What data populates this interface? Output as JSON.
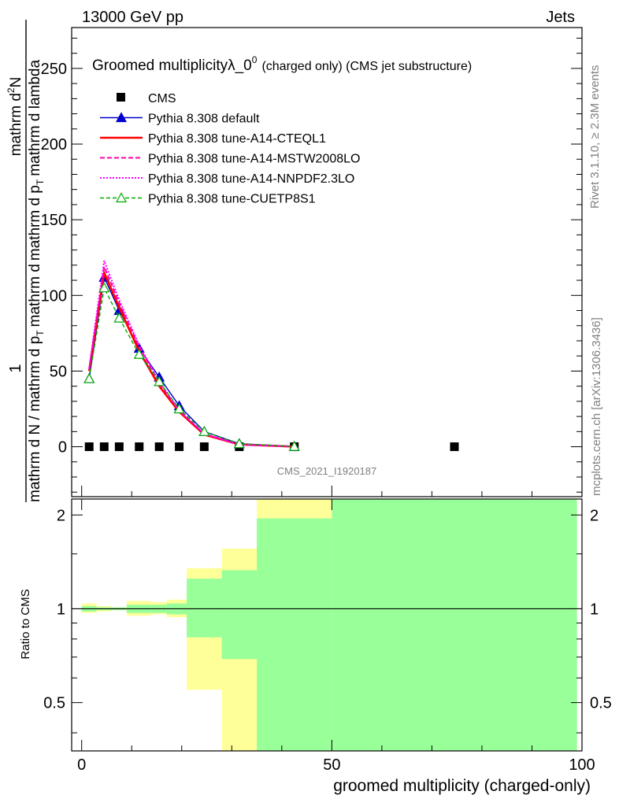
{
  "header": {
    "left": "13000 GeV pp",
    "right": "Jets"
  },
  "side_labels": {
    "rivet": "Rivet 3.1.10, ≥ 2.3M events",
    "mcplots": "mcplots.cern.ch [arXiv:1306.3436]"
  },
  "watermark": "CMS_2021_I1920187",
  "chart_data": [
    {
      "type": "line",
      "title": "Groomed multiplicityλ_0",
      "title_sup": "0",
      "title_suffix": "(charged only) (CMS jet substructure)",
      "ylabel_num_1": "1",
      "ylabel_den_1": "mathrm d N / mathrm d p",
      "ylabel_sub": "T",
      "ylabel_num_2": "mathrm d",
      "ylabel_sup": "2",
      "ylabel_num_3": "N",
      "ylabel_den_2": "mathrm d p",
      "ylabel_den_3": "mathrm d lambda",
      "xlim": [
        -2,
        100
      ],
      "ylim": [
        -33,
        277
      ],
      "yticks": [
        0,
        50,
        100,
        150,
        200,
        250
      ],
      "ytick_labels": [
        "0",
        "50",
        "100",
        "150",
        "200",
        "250"
      ],
      "legend_placement": "top-left",
      "series": [
        {
          "name": "CMS",
          "color": "#000000",
          "style": "marker-square",
          "x": [
            1.5,
            4.5,
            7.5,
            11.5,
            15.5,
            19.5,
            24.5,
            31.5,
            42.5,
            74.5
          ],
          "y": [
            0,
            0,
            0,
            0,
            0,
            0,
            0,
            0,
            0,
            0
          ]
        },
        {
          "name": "Pythia 8.308 default",
          "color": "#0000cc",
          "style": "solid-triangle",
          "x": [
            1.5,
            4.5,
            7.5,
            11.5,
            15.5,
            19.5,
            24.5,
            31.5,
            42.5
          ],
          "y": [
            45,
            112,
            90,
            65,
            46,
            27,
            10,
            2,
            0.2
          ]
        },
        {
          "name": "Pythia 8.308 tune-A14-CTEQL1",
          "color": "#ff0000",
          "style": "solid-thick",
          "x": [
            1.5,
            4.5,
            7.5,
            11.5,
            15.5,
            19.5,
            24.5,
            31.5,
            42.5
          ],
          "y": [
            50,
            115,
            92,
            63,
            40,
            23,
            8,
            1.5,
            0.1
          ]
        },
        {
          "name": "Pythia 8.308 tune-A14-MSTW2008LO",
          "color": "#ff00aa",
          "style": "dashed",
          "x": [
            1.5,
            4.5,
            7.5,
            11.5,
            15.5,
            19.5,
            24.5,
            31.5,
            42.5
          ],
          "y": [
            51,
            119,
            95,
            66,
            42,
            24,
            8.5,
            1.5,
            0.1
          ]
        },
        {
          "name": "Pythia 8.308 tune-A14-NNPDF2.3LO",
          "color": "#ff00ff",
          "style": "dotted",
          "x": [
            1.5,
            4.5,
            7.5,
            11.5,
            15.5,
            19.5,
            24.5,
            31.5,
            42.5
          ],
          "y": [
            52,
            123,
            97,
            67,
            43,
            24,
            8.5,
            1.5,
            0.1
          ]
        },
        {
          "name": "Pythia 8.308 tune-CUETP8S1",
          "color": "#00aa00",
          "style": "dashed-open-triangle",
          "x": [
            1.5,
            4.5,
            7.5,
            11.5,
            15.5,
            19.5,
            24.5,
            31.5,
            42.5
          ],
          "y": [
            45,
            105,
            85,
            61,
            43,
            25,
            10,
            2,
            0.2
          ]
        }
      ]
    },
    {
      "type": "area",
      "ylabel": "Ratio to CMS",
      "xlabel": "groomed multiplicity (charged-only)",
      "xlim": [
        -2,
        100
      ],
      "ylim": [
        0.35,
        2.25
      ],
      "xticks": [
        0,
        50,
        100
      ],
      "xtick_labels": [
        "0",
        "50",
        "100"
      ],
      "yticks": [
        0.5,
        1,
        2
      ],
      "ytick_labels": [
        "0.5",
        "1",
        "2"
      ],
      "reference_line": 1,
      "bands": [
        {
          "x0": 0,
          "x1": 3,
          "inner": [
            0.98,
            1.02
          ],
          "outer": [
            0.97,
            1.04
          ]
        },
        {
          "x0": 3,
          "x1": 6,
          "inner": [
            0.99,
            1.01
          ],
          "outer": [
            0.98,
            1.02
          ]
        },
        {
          "x0": 6,
          "x1": 9,
          "inner": [
            0.99,
            1.01
          ],
          "outer": [
            0.99,
            1.01
          ]
        },
        {
          "x0": 9,
          "x1": 14,
          "inner": [
            0.97,
            1.03
          ],
          "outer": [
            0.95,
            1.06
          ]
        },
        {
          "x0": 14,
          "x1": 17,
          "inner": [
            0.97,
            1.03
          ],
          "outer": [
            0.96,
            1.05
          ]
        },
        {
          "x0": 17,
          "x1": 21,
          "inner": [
            0.96,
            1.04
          ],
          "outer": [
            0.94,
            1.07
          ]
        },
        {
          "x0": 21,
          "x1": 28,
          "inner": [
            0.81,
            1.25
          ],
          "outer": [
            0.55,
            1.35
          ]
        },
        {
          "x0": 28,
          "x1": 35,
          "inner": [
            0.69,
            1.33
          ],
          "outer": [
            0.35,
            1.56
          ]
        },
        {
          "x0": 35,
          "x1": 50,
          "inner": [
            0.35,
            1.95
          ],
          "outer": [
            0.35,
            2.25
          ]
        },
        {
          "x0": 50,
          "x1": 99,
          "inner": [
            0.35,
            2.25
          ],
          "outer": [
            0.35,
            2.25
          ]
        }
      ]
    }
  ]
}
